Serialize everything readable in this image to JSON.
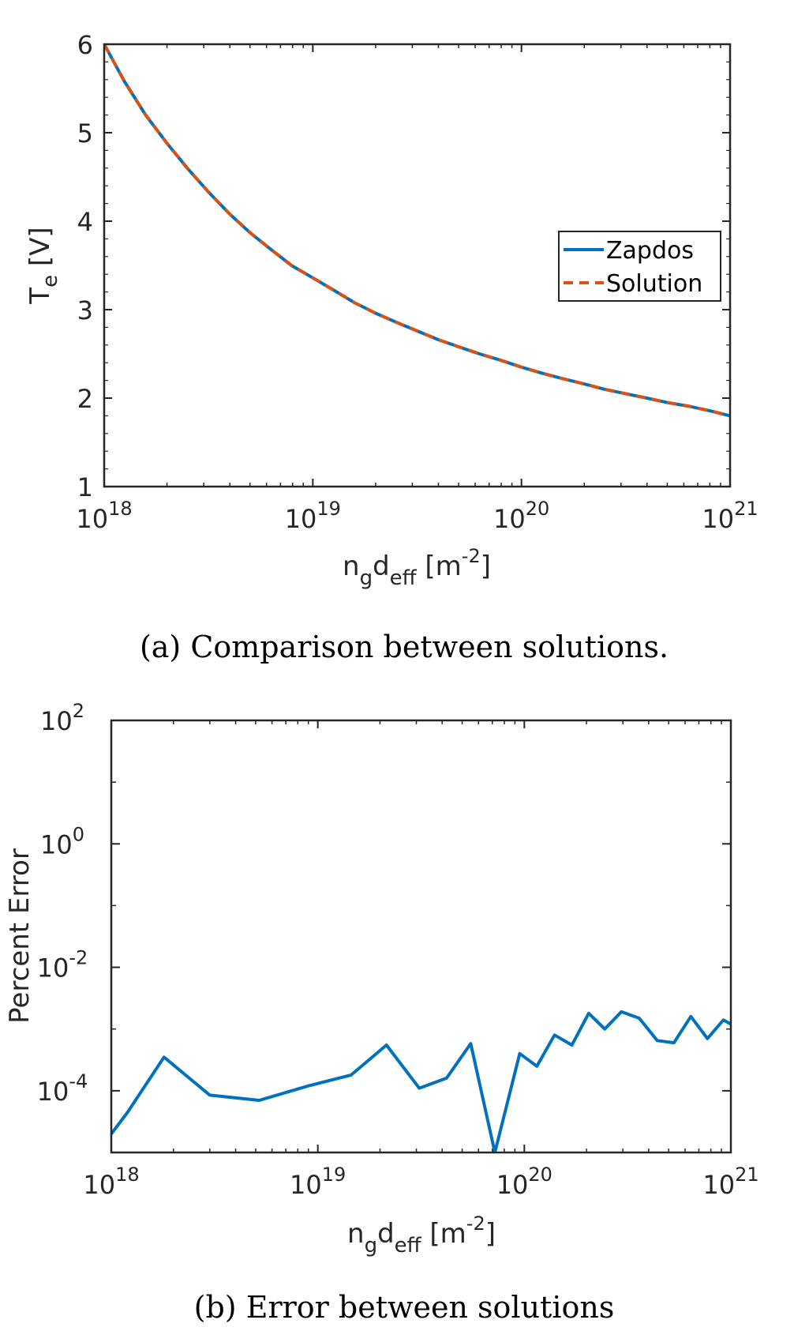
{
  "chart_data": [
    {
      "type": "line",
      "xscale": "log",
      "xlim": [
        1e+18,
        1e+21
      ],
      "ylim": [
        1,
        6
      ],
      "xlabel": {
        "main": "n",
        "sub1": "g",
        "mid": "d",
        "sub2": "eff",
        "unit": " [m",
        "exp": "-2",
        "close": "]"
      },
      "ylabel": {
        "main": "T",
        "sub": "e",
        "unit": " [V]"
      },
      "x_ticks": [
        {
          "base": "10",
          "exp": "18",
          "value": 1e+18
        },
        {
          "base": "10",
          "exp": "19",
          "value": 1e+19
        },
        {
          "base": "10",
          "exp": "20",
          "value": 1e+20
        },
        {
          "base": "10",
          "exp": "21",
          "value": 1e+21
        }
      ],
      "y_ticks": [
        "1",
        "2",
        "3",
        "4",
        "5",
        "6"
      ],
      "grid": false,
      "legend_position": "right",
      "series": [
        {
          "name": "Zapdos",
          "color": "#0072BD",
          "style": "solid",
          "x": [
            1e+18,
            1.25e+18,
            1.58e+18,
            2e+18,
            2.5e+18,
            3.16e+18,
            4e+18,
            5e+18,
            6.3e+18,
            7.9e+18,
            1e+19,
            1.26e+19,
            1.58e+19,
            2e+19,
            2.5e+19,
            3.16e+19,
            4e+19,
            5e+19,
            6.3e+19,
            7.9e+19,
            1e+20,
            1.26e+20,
            1.58e+20,
            2e+20,
            2.5e+20,
            3.16e+20,
            4e+20,
            5e+20,
            6.3e+20,
            7.9e+20,
            1e+21
          ],
          "y": [
            6.0,
            5.58,
            5.2,
            4.88,
            4.6,
            4.33,
            4.08,
            3.87,
            3.68,
            3.5,
            3.36,
            3.22,
            3.08,
            2.96,
            2.86,
            2.76,
            2.66,
            2.58,
            2.5,
            2.43,
            2.35,
            2.28,
            2.22,
            2.16,
            2.1,
            2.05,
            2.0,
            1.95,
            1.91,
            1.86,
            1.8
          ]
        },
        {
          "name": "Solution",
          "color": "#D95319",
          "style": "dashed",
          "x": [
            1e+18,
            1.25e+18,
            1.58e+18,
            2e+18,
            2.5e+18,
            3.16e+18,
            4e+18,
            5e+18,
            6.3e+18,
            7.9e+18,
            1e+19,
            1.26e+19,
            1.58e+19,
            2e+19,
            2.5e+19,
            3.16e+19,
            4e+19,
            5e+19,
            6.3e+19,
            7.9e+19,
            1e+20,
            1.26e+20,
            1.58e+20,
            2e+20,
            2.5e+20,
            3.16e+20,
            4e+20,
            5e+20,
            6.3e+20,
            7.9e+20,
            1e+21
          ],
          "y": [
            6.0,
            5.58,
            5.2,
            4.88,
            4.6,
            4.33,
            4.08,
            3.87,
            3.68,
            3.5,
            3.36,
            3.22,
            3.08,
            2.96,
            2.86,
            2.76,
            2.66,
            2.58,
            2.5,
            2.43,
            2.35,
            2.28,
            2.22,
            2.16,
            2.1,
            2.05,
            2.0,
            1.95,
            1.91,
            1.86,
            1.8
          ]
        }
      ],
      "caption": "(a) Comparison between solutions."
    },
    {
      "type": "line",
      "xscale": "log",
      "yscale": "log",
      "xlim": [
        1e+18,
        1e+21
      ],
      "ylim": [
        1e-05,
        100
      ],
      "xlabel": {
        "main": "n",
        "sub1": "g",
        "mid": "d",
        "sub2": "eff",
        "unit": " [m",
        "exp": "-2",
        "close": "]"
      },
      "ylabel": {
        "main": "Percent Error"
      },
      "x_ticks": [
        {
          "base": "10",
          "exp": "18",
          "value": 1e+18
        },
        {
          "base": "10",
          "exp": "19",
          "value": 1e+19
        },
        {
          "base": "10",
          "exp": "20",
          "value": 1e+20
        },
        {
          "base": "10",
          "exp": "21",
          "value": 1e+21
        }
      ],
      "y_ticks": [
        {
          "base": "10",
          "exp": "2",
          "value": 100
        },
        {
          "base": "10",
          "exp": "0",
          "value": 1
        },
        {
          "base": "10",
          "exp": "-2",
          "value": 0.01
        },
        {
          "base": "10",
          "exp": "-4",
          "value": 0.0001
        }
      ],
      "grid": false,
      "series": [
        {
          "color": "#0072BD",
          "style": "solid",
          "x": [
            1e+18,
            1.2e+18,
            1.8e+18,
            3e+18,
            5.2e+18,
            9e+18,
            1.45e+19,
            2.15e+19,
            3.1e+19,
            4.2e+19,
            5.5e+19,
            7.2e+19,
            9.5e+19,
            1.15e+20,
            1.4e+20,
            1.7e+20,
            2.05e+20,
            2.45e+20,
            2.95e+20,
            3.6e+20,
            4.4e+20,
            5.3e+20,
            6.4e+20,
            7.7e+20,
            9.2e+20,
            1e+21
          ],
          "y": [
            2e-05,
            4.5e-05,
            0.00035,
            8.5e-05,
            7e-05,
            0.00012,
            0.00018,
            0.00055,
            0.00011,
            0.00016,
            0.00058,
            1e-05,
            0.0004,
            0.00025,
            0.0008,
            0.00055,
            0.0018,
            0.001,
            0.0019,
            0.0015,
            0.00065,
            0.0006,
            0.0016,
            0.0007,
            0.0014,
            0.0012
          ]
        }
      ],
      "caption": "(b) Error between solutions"
    }
  ]
}
